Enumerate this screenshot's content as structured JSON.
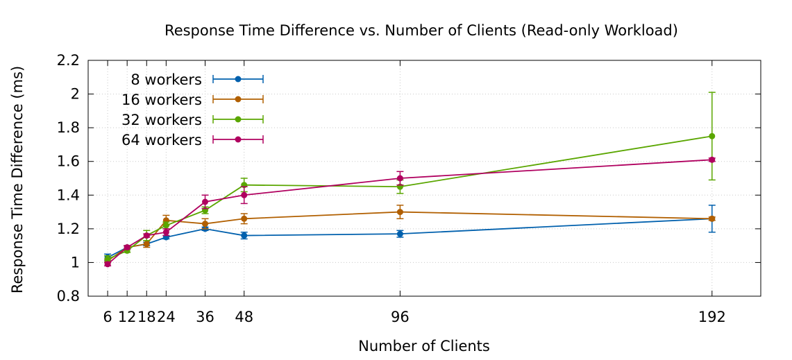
{
  "chart_data": {
    "type": "line",
    "title": "Response Time Difference vs. Number of Clients (Read-only Workload)",
    "xlabel": "Number of Clients",
    "ylabel": "Response Time Difference (ms)",
    "x": [
      6,
      12,
      18,
      24,
      36,
      48,
      96,
      192
    ],
    "x_tick_labels": [
      "6",
      "12",
      "18",
      "24",
      "36",
      "48",
      "96",
      "192"
    ],
    "xlim": [
      0,
      207
    ],
    "ylim": [
      0.8,
      2.2
    ],
    "y_ticks": [
      0.8,
      1,
      1.2,
      1.4,
      1.6,
      1.8,
      2,
      2.2
    ],
    "y_tick_labels": [
      "0.8",
      "1",
      "1.2",
      "1.4",
      "1.6",
      "1.8",
      "2",
      "2.2"
    ],
    "grid": true,
    "legend_position": "top-left",
    "error_bars": true,
    "series": [
      {
        "name": "8 workers",
        "color": "#0060ad",
        "values": [
          1.03,
          1.09,
          1.11,
          1.15,
          1.2,
          1.16,
          1.17,
          1.26
        ],
        "errors": [
          0.02,
          0.01,
          0.01,
          0.01,
          0.01,
          0.02,
          0.02,
          0.08
        ]
      },
      {
        "name": "16 workers",
        "color": "#b15f00",
        "values": [
          1.01,
          1.09,
          1.11,
          1.25,
          1.23,
          1.26,
          1.3,
          1.26
        ],
        "errors": [
          0.01,
          0.01,
          0.02,
          0.03,
          0.03,
          0.03,
          0.04,
          0.01
        ]
      },
      {
        "name": "32 workers",
        "color": "#5aa600",
        "values": [
          1.02,
          1.07,
          1.16,
          1.22,
          1.31,
          1.46,
          1.45,
          1.75
        ],
        "errors": [
          0.02,
          0.01,
          0.03,
          0.02,
          0.02,
          0.04,
          0.04,
          0.26
        ]
      },
      {
        "name": "64 workers",
        "color": "#b0005f",
        "values": [
          0.99,
          1.09,
          1.16,
          1.18,
          1.36,
          1.4,
          1.5,
          1.61
        ],
        "errors": [
          0.01,
          0.01,
          0.01,
          0.02,
          0.04,
          0.05,
          0.04,
          0.01
        ]
      }
    ]
  }
}
